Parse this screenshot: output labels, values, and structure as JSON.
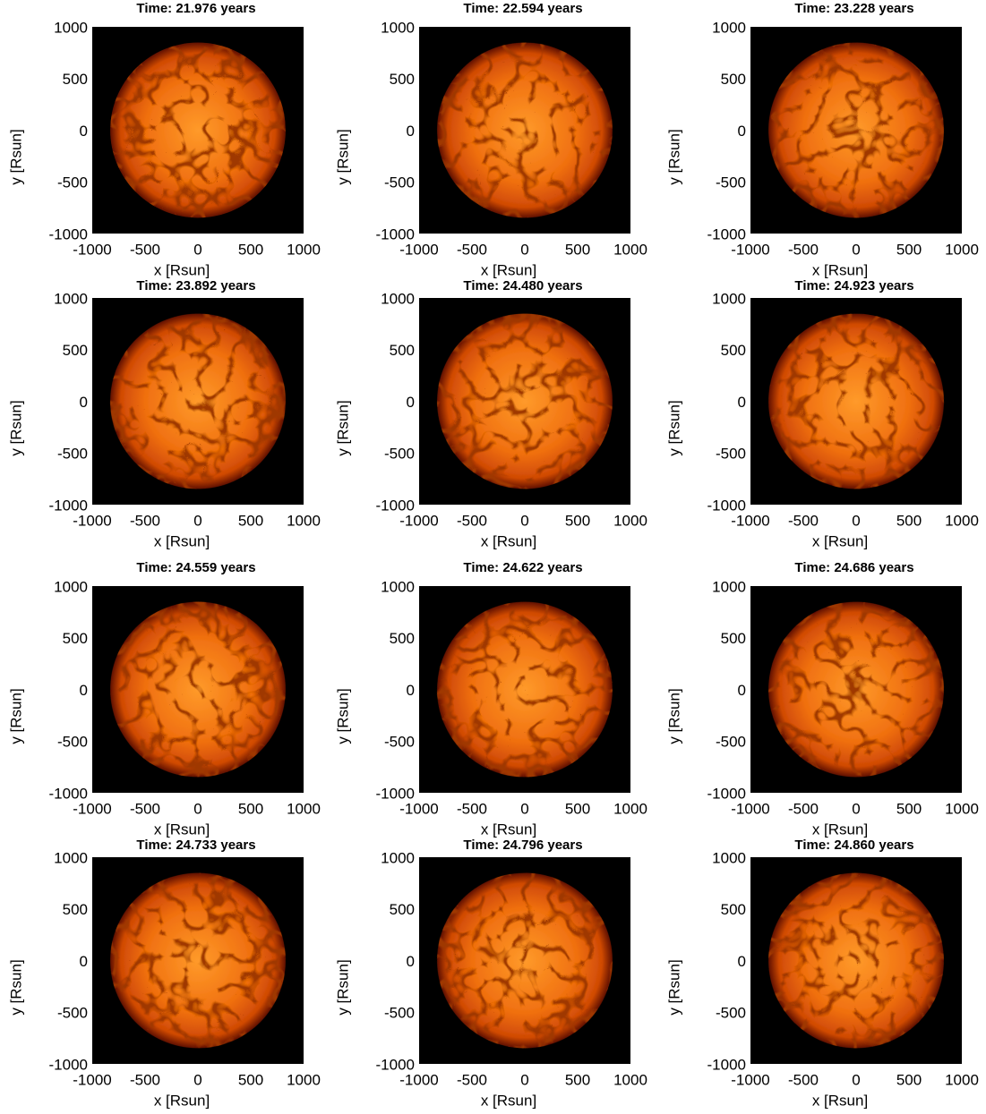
{
  "chart_data": [
    {
      "type": "image",
      "title": "Time: 21.976 years",
      "xlabel": "x [Rsun]",
      "ylabel": "y [Rsun]",
      "xlim": [
        -1000,
        1000
      ],
      "ylim": [
        -1000,
        1000
      ],
      "xticks": [
        -1000,
        -500,
        0,
        500,
        1000
      ],
      "yticks": [
        -1000,
        -500,
        0,
        500,
        1000
      ]
    },
    {
      "type": "image",
      "title": "Time: 22.594 years",
      "xlabel": "x [Rsun]",
      "ylabel": "y [Rsun]",
      "xlim": [
        -1000,
        1000
      ],
      "ylim": [
        -1000,
        1000
      ],
      "xticks": [
        -1000,
        -500,
        0,
        500,
        1000
      ],
      "yticks": [
        -1000,
        -500,
        0,
        500,
        1000
      ]
    },
    {
      "type": "image",
      "title": "Time: 23.228 years",
      "xlabel": "x [Rsun]",
      "ylabel": "y [Rsun]",
      "xlim": [
        -1000,
        1000
      ],
      "ylim": [
        -1000,
        1000
      ],
      "xticks": [
        -1000,
        -500,
        0,
        500,
        1000
      ],
      "yticks": [
        -1000,
        -500,
        0,
        500,
        1000
      ]
    },
    {
      "type": "image",
      "title": "Time: 23.892 years",
      "xlabel": "x [Rsun]",
      "ylabel": "y [Rsun]",
      "xlim": [
        -1000,
        1000
      ],
      "ylim": [
        -1000,
        1000
      ],
      "xticks": [
        -1000,
        -500,
        0,
        500,
        1000
      ],
      "yticks": [
        -1000,
        -500,
        0,
        500,
        1000
      ]
    },
    {
      "type": "image",
      "title": "Time: 24.480 years",
      "xlabel": "x [Rsun]",
      "ylabel": "y [Rsun]",
      "xlim": [
        -1000,
        1000
      ],
      "ylim": [
        -1000,
        1000
      ],
      "xticks": [
        -1000,
        -500,
        0,
        500,
        1000
      ],
      "yticks": [
        -1000,
        -500,
        0,
        500,
        1000
      ]
    },
    {
      "type": "image",
      "title": "Time: 24.923 years",
      "xlabel": "x [Rsun]",
      "ylabel": "y [Rsun]",
      "xlim": [
        -1000,
        1000
      ],
      "ylim": [
        -1000,
        1000
      ],
      "xticks": [
        -1000,
        -500,
        0,
        500,
        1000
      ],
      "yticks": [
        -1000,
        -500,
        0,
        500,
        1000
      ]
    },
    {
      "type": "image",
      "title": "Time: 24.559 years",
      "xlabel": "x [Rsun]",
      "ylabel": "y [Rsun]",
      "xlim": [
        -1000,
        1000
      ],
      "ylim": [
        -1000,
        1000
      ],
      "xticks": [
        -1000,
        -500,
        0,
        500,
        1000
      ],
      "yticks": [
        -1000,
        -500,
        0,
        500,
        1000
      ]
    },
    {
      "type": "image",
      "title": "Time: 24.622 years",
      "xlabel": "x [Rsun]",
      "ylabel": "y [Rsun]",
      "xlim": [
        -1000,
        1000
      ],
      "ylim": [
        -1000,
        1000
      ],
      "xticks": [
        -1000,
        -500,
        0,
        500,
        1000
      ],
      "yticks": [
        -1000,
        -500,
        0,
        500,
        1000
      ]
    },
    {
      "type": "image",
      "title": "Time: 24.686 years",
      "xlabel": "x [Rsun]",
      "ylabel": "y [Rsun]",
      "xlim": [
        -1000,
        1000
      ],
      "ylim": [
        -1000,
        1000
      ],
      "xticks": [
        -1000,
        -500,
        0,
        500,
        1000
      ],
      "yticks": [
        -1000,
        -500,
        0,
        500,
        1000
      ]
    },
    {
      "type": "image",
      "title": "Time: 24.733 years",
      "xlabel": "x [Rsun]",
      "ylabel": "y [Rsun]",
      "xlim": [
        -1000,
        1000
      ],
      "ylim": [
        -1000,
        1000
      ],
      "xticks": [
        -1000,
        -500,
        0,
        500,
        1000
      ],
      "yticks": [
        -1000,
        -500,
        0,
        500,
        1000
      ]
    },
    {
      "type": "image",
      "title": "Time: 24.796 years",
      "xlabel": "x [Rsun]",
      "ylabel": "y [Rsun]",
      "xlim": [
        -1000,
        1000
      ],
      "ylim": [
        -1000,
        1000
      ],
      "xticks": [
        -1000,
        -500,
        0,
        500,
        1000
      ],
      "yticks": [
        -1000,
        -500,
        0,
        500,
        1000
      ]
    },
    {
      "type": "image",
      "title": "Time: 24.860 years",
      "xlabel": "x [Rsun]",
      "ylabel": "y [Rsun]",
      "xlim": [
        -1000,
        1000
      ],
      "ylim": [
        -1000,
        1000
      ],
      "xticks": [
        -1000,
        -500,
        0,
        500,
        1000
      ],
      "yticks": [
        -1000,
        -500,
        0,
        500,
        1000
      ]
    }
  ]
}
